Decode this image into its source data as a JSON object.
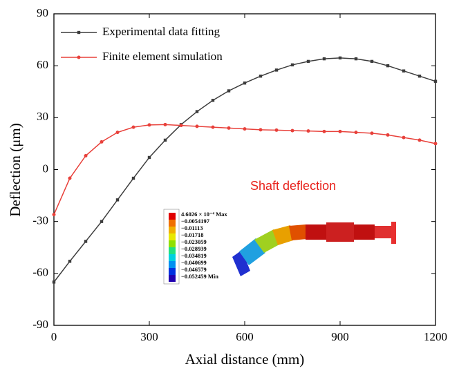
{
  "chart_data": {
    "type": "line",
    "x_label": "Axial distance (mm)",
    "y_label": "Deflection (μm)",
    "x": [
      0,
      50,
      100,
      150,
      200,
      250,
      300,
      350,
      400,
      450,
      500,
      550,
      600,
      650,
      700,
      750,
      800,
      850,
      900,
      950,
      1000,
      1050,
      1100,
      1150,
      1200
    ],
    "series": [
      {
        "name": "Experimental data fitting",
        "color": "#3c3c3c",
        "marker": "square",
        "values": [
          -65,
          -53,
          -41.5,
          -30,
          -17.5,
          -5,
          7,
          17,
          26,
          33.5,
          40,
          45.5,
          50,
          54,
          57.5,
          60.5,
          62.5,
          64,
          64.5,
          64,
          62.5,
          60,
          57,
          54,
          51
        ]
      },
      {
        "name": "Finite element simulation",
        "color": "#e8403a",
        "marker": "circle",
        "values": [
          -26,
          -5,
          8,
          16,
          21.5,
          24.5,
          25.8,
          26,
          25.5,
          25,
          24.5,
          24,
          23.5,
          23,
          22.8,
          22.5,
          22.3,
          22,
          22,
          21.5,
          21,
          20,
          18.5,
          17,
          15
        ]
      }
    ],
    "xlim": [
      0,
      1200
    ],
    "xticks": [
      0,
      300,
      600,
      900,
      1200
    ],
    "ylim": [
      -90,
      90
    ],
    "yticks": [
      -90,
      -60,
      -30,
      0,
      30,
      60,
      90
    ],
    "grid": false,
    "legend": "upper left",
    "annotation": "Shaft deflection",
    "annotation_color": "#e8201a",
    "inset": {
      "labels": [
        "4.6026 × 10⁻⁴ Max",
        "−0.0054197",
        "−0.01113",
        "−0.01718",
        "−0.023059",
        "−0.028939",
        "−0.034819",
        "−0.040699",
        "−0.046579",
        "−0.052459 Min"
      ]
    }
  }
}
